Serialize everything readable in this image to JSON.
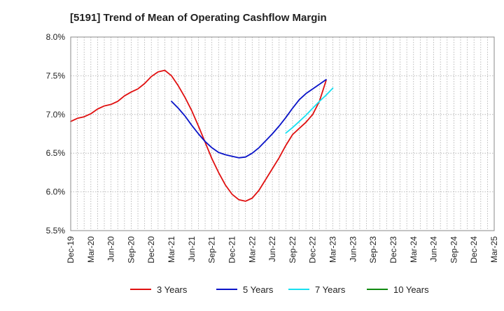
{
  "chart_data": {
    "type": "line",
    "title": "[5191]  Trend of Mean of Operating Cashflow Margin",
    "xlabel": "",
    "ylabel": "",
    "ylim": [
      5.5,
      8.0
    ],
    "y_ticks": [
      5.5,
      6.0,
      6.5,
      7.0,
      7.5,
      8.0
    ],
    "y_tick_labels": [
      "5.5%",
      "6.0%",
      "6.5%",
      "7.0%",
      "7.5%",
      "8.0%"
    ],
    "x_ticks": [
      "Dec-19",
      "Mar-20",
      "Jun-20",
      "Sep-20",
      "Dec-20",
      "Mar-21",
      "Jun-21",
      "Sep-21",
      "Dec-21",
      "Mar-22",
      "Jun-22",
      "Sep-22",
      "Dec-22",
      "Mar-23",
      "Jun-23",
      "Sep-23",
      "Dec-23",
      "Mar-24",
      "Jun-24",
      "Sep-24",
      "Dec-24",
      "Mar-25"
    ],
    "grid": true,
    "legend_position": "bottom",
    "series": [
      {
        "name": "3 Years",
        "color": "#e01010",
        "points": [
          [
            0,
            6.91
          ],
          [
            1,
            6.95
          ],
          [
            2,
            6.97
          ],
          [
            3,
            7.01
          ],
          [
            4,
            7.07
          ],
          [
            5,
            7.11
          ],
          [
            6,
            7.13
          ],
          [
            7,
            7.17
          ],
          [
            8,
            7.24
          ],
          [
            9,
            7.29
          ],
          [
            10,
            7.33
          ],
          [
            11,
            7.4
          ],
          [
            12,
            7.49
          ],
          [
            13,
            7.55
          ],
          [
            14,
            7.57
          ],
          [
            15,
            7.5
          ],
          [
            16,
            7.37
          ],
          [
            17,
            7.22
          ],
          [
            18,
            7.05
          ],
          [
            19,
            6.85
          ],
          [
            20,
            6.64
          ],
          [
            21,
            6.43
          ],
          [
            22,
            6.25
          ],
          [
            23,
            6.09
          ],
          [
            24,
            5.97
          ],
          [
            25,
            5.9
          ],
          [
            26,
            5.88
          ],
          [
            27,
            5.92
          ],
          [
            28,
            6.02
          ],
          [
            29,
            6.16
          ],
          [
            30,
            6.3
          ],
          [
            31,
            6.44
          ],
          [
            32,
            6.6
          ],
          [
            33,
            6.74
          ],
          [
            34,
            6.82
          ],
          [
            35,
            6.9
          ],
          [
            36,
            7.0
          ],
          [
            37,
            7.17
          ],
          [
            38,
            7.44
          ]
        ]
      },
      {
        "name": "5 Years",
        "color": "#0a14c8",
        "points": [
          [
            15,
            7.17
          ],
          [
            16,
            7.08
          ],
          [
            17,
            6.98
          ],
          [
            18,
            6.86
          ],
          [
            19,
            6.75
          ],
          [
            20,
            6.65
          ],
          [
            21,
            6.57
          ],
          [
            22,
            6.51
          ],
          [
            23,
            6.48
          ],
          [
            24,
            6.46
          ],
          [
            25,
            6.44
          ],
          [
            26,
            6.45
          ],
          [
            27,
            6.5
          ],
          [
            28,
            6.57
          ],
          [
            29,
            6.66
          ],
          [
            30,
            6.75
          ],
          [
            31,
            6.85
          ],
          [
            32,
            6.96
          ],
          [
            33,
            7.08
          ],
          [
            34,
            7.19
          ],
          [
            35,
            7.27
          ],
          [
            36,
            7.33
          ],
          [
            37,
            7.39
          ],
          [
            38,
            7.45
          ]
        ]
      },
      {
        "name": "7 Years",
        "color": "#18e0f0",
        "points": [
          [
            32,
            6.76
          ],
          [
            33,
            6.83
          ],
          [
            34,
            6.91
          ],
          [
            35,
            6.99
          ],
          [
            36,
            7.08
          ],
          [
            37,
            7.17
          ],
          [
            38,
            7.25
          ],
          [
            39,
            7.34
          ]
        ]
      },
      {
        "name": "10 Years",
        "color": "#108a10",
        "points": []
      }
    ]
  }
}
